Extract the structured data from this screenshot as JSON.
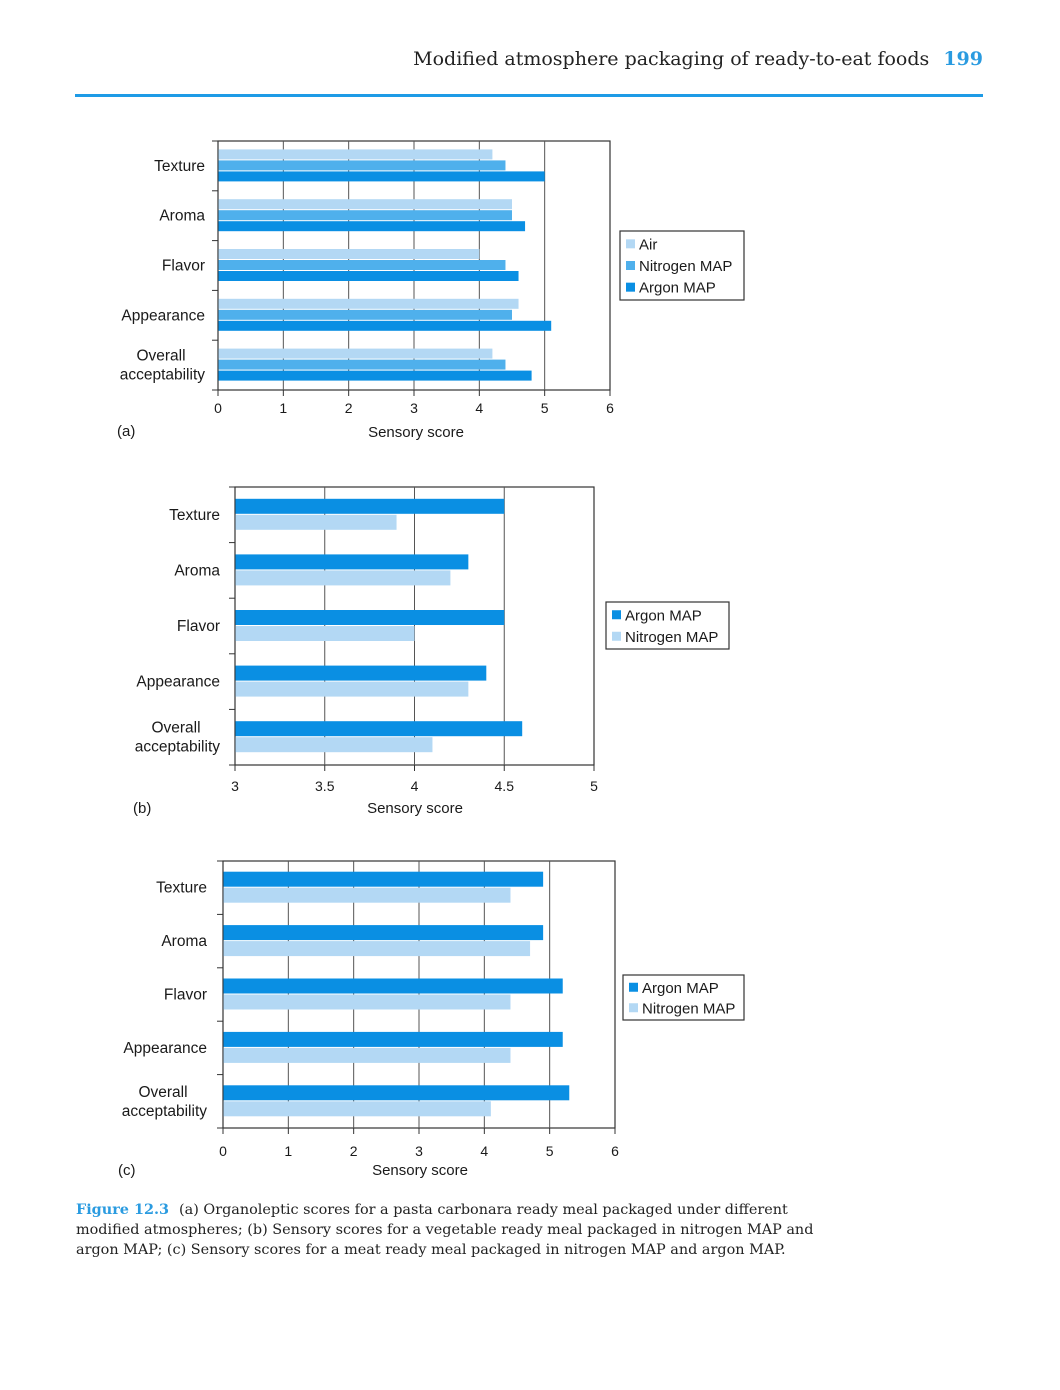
{
  "header": {
    "title": "Modified atmosphere packaging of ready-to-eat foods",
    "page_number": "199"
  },
  "caption": {
    "label": "Figure 12.3",
    "text": "(a) Organoleptic scores for a pasta carbonara ready meal packaged under different modified atmospheres; (b) Sensory scores for a vegetable ready meal packaged in nitrogen MAP and argon MAP; (c) Sensory scores for a meat ready meal packaged in nitrogen MAP and argon MAP."
  },
  "colors": {
    "light": "#b3d8f4",
    "medium": "#4fb0ec",
    "dark": "#0a8fe3",
    "header_blue": "#1e9be6"
  },
  "chart_data": [
    {
      "panel": "(a)",
      "type": "bar",
      "orientation": "horizontal",
      "categories": [
        "Texture",
        "Aroma",
        "Flavor",
        "Appearance",
        "Overall\nacceptability"
      ],
      "series": [
        {
          "name": "Air",
          "color": "#b3d8f4",
          "values": [
            4.2,
            4.5,
            4.0,
            4.6,
            4.2
          ]
        },
        {
          "name": "Nitrogen MAP",
          "color": "#4fb0ec",
          "values": [
            4.4,
            4.5,
            4.4,
            4.5,
            4.4
          ]
        },
        {
          "name": "Argon MAP",
          "color": "#0a8fe3",
          "values": [
            5.0,
            4.7,
            4.6,
            5.1,
            4.8
          ]
        }
      ],
      "xlabel": "Sensory score",
      "xlim": [
        0,
        6
      ],
      "xticks": [
        "0",
        "1",
        "2",
        "3",
        "4",
        "5",
        "6"
      ],
      "legend": "right",
      "grid": true
    },
    {
      "panel": "(b)",
      "type": "bar",
      "orientation": "horizontal",
      "categories": [
        "Texture",
        "Aroma",
        "Flavor",
        "Appearance",
        "Overall\nacceptability"
      ],
      "series": [
        {
          "name": "Argon MAP",
          "color": "#0a8fe3",
          "values": [
            4.5,
            4.3,
            4.5,
            4.4,
            4.6
          ]
        },
        {
          "name": "Nitrogen MAP",
          "color": "#b3d8f4",
          "values": [
            3.9,
            4.2,
            4.0,
            4.3,
            4.1
          ]
        }
      ],
      "xlabel": "Sensory score",
      "xlim": [
        3,
        5
      ],
      "xticks": [
        "3",
        "3.5",
        "4",
        "4.5",
        "5"
      ],
      "legend": "right",
      "grid": true
    },
    {
      "panel": "(c)",
      "type": "bar",
      "orientation": "horizontal",
      "categories": [
        "Texture",
        "Aroma",
        "Flavor",
        "Appearance",
        "Overall\nacceptability"
      ],
      "series": [
        {
          "name": "Argon MAP",
          "color": "#0a8fe3",
          "values": [
            4.9,
            4.9,
            5.2,
            5.2,
            5.3
          ]
        },
        {
          "name": "Nitrogen MAP",
          "color": "#b3d8f4",
          "values": [
            4.4,
            4.7,
            4.4,
            4.4,
            4.1
          ]
        }
      ],
      "xlabel": "Sensory score",
      "xlim": [
        0,
        6
      ],
      "xticks": [
        "0",
        "1",
        "2",
        "3",
        "4",
        "5",
        "6"
      ],
      "legend": "right",
      "grid": true
    }
  ]
}
